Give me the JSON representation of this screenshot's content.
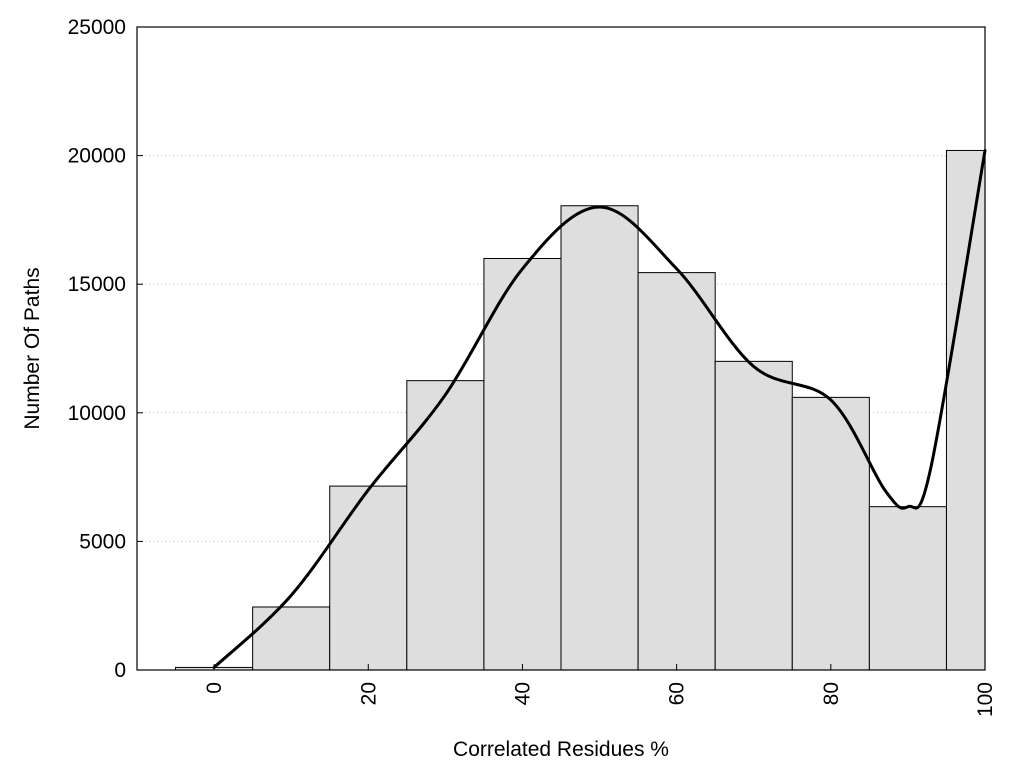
{
  "chart_data": {
    "type": "bar",
    "title": "",
    "xlabel": "Correlated Residues %",
    "ylabel": "Number Of Paths",
    "x_bin_centers": [
      0,
      10,
      20,
      30,
      40,
      50,
      60,
      70,
      80,
      90,
      100
    ],
    "bin_width": 10,
    "values": [
      100,
      2450,
      7150,
      11250,
      16000,
      18050,
      15450,
      12000,
      10600,
      6350,
      20200
    ],
    "xlim": [
      -10,
      100
    ],
    "ylim": [
      0,
      25000
    ],
    "x_ticks": [
      0,
      20,
      40,
      60,
      80,
      100
    ],
    "y_ticks": [
      0,
      5000,
      10000,
      15000,
      20000,
      25000
    ],
    "grid": "horizontal dotted",
    "legend": "none",
    "bar_color": "#dedede",
    "bar_edge_color": "#000000",
    "curve": {
      "type": "smooth-line",
      "color": "#000000",
      "x": [
        0,
        10,
        20,
        30,
        40,
        50,
        60,
        70,
        80,
        87,
        90,
        93,
        100
      ],
      "y": [
        100,
        2900,
        7000,
        10700,
        15600,
        18000,
        15600,
        11800,
        10500,
        7000,
        6350,
        7900,
        20200
      ]
    }
  }
}
